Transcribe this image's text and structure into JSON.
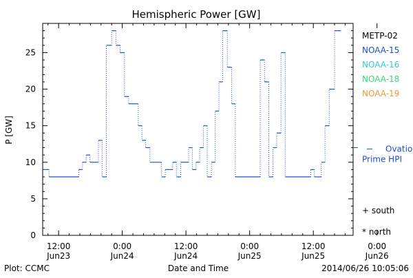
{
  "chart_data": {
    "type": "line",
    "title": "Hemispheric Power [GW]",
    "ylabel": "P [GW]",
    "xlabel": "Date and Time",
    "ylim": [
      0,
      29
    ],
    "yticks": [
      "0",
      "5",
      "10",
      "15",
      "20",
      "25"
    ],
    "x_tick_labels": [
      {
        "time": "12:00",
        "date": "Jun23"
      },
      {
        "time": "0:00",
        "date": "Jun24"
      },
      {
        "time": "12:00",
        "date": "Jun24"
      },
      {
        "time": "0:00",
        "date": "Jun25"
      },
      {
        "time": "12:00",
        "date": "Jun25"
      },
      {
        "time": "0:00",
        "date": "Jun26"
      }
    ],
    "xlim_hours": [
      -3.0,
      55.5
    ],
    "legend": [
      {
        "name": "METP-02",
        "color": "#000000"
      },
      {
        "name": "NOAA-15",
        "color": "#1f4fd0"
      },
      {
        "name": "NOAA-16",
        "color": "#33c8d8"
      },
      {
        "name": "NOAA-18",
        "color": "#33d880"
      },
      {
        "name": "NOAA-19",
        "color": "#f09a2a"
      }
    ],
    "reference": {
      "label_line1": "Ovation",
      "label_line2": "Prime HPI",
      "value": 12,
      "color": "#1f4fd0"
    },
    "markers_legend": [
      {
        "symbol": "+",
        "label": "south"
      },
      {
        "symbol": "*",
        "label": "north"
      }
    ],
    "series": [
      {
        "name": "NOAA-15",
        "color": "#1f4fd0",
        "steps": [
          [
            -3.0,
            9
          ],
          [
            -1.8,
            8
          ],
          [
            3.8,
            9
          ],
          [
            4.5,
            10
          ],
          [
            5.2,
            11
          ],
          [
            5.9,
            10
          ],
          [
            7.5,
            13
          ],
          [
            8.2,
            8
          ],
          [
            9.0,
            26
          ],
          [
            10.0,
            28
          ],
          [
            10.8,
            26
          ],
          [
            11.6,
            25
          ],
          [
            12.4,
            19
          ],
          [
            13.2,
            18
          ],
          [
            15.0,
            15
          ],
          [
            15.7,
            13
          ],
          [
            16.4,
            12
          ],
          [
            17.2,
            10
          ],
          [
            19.4,
            8
          ],
          [
            20.1,
            9
          ],
          [
            21.5,
            10
          ],
          [
            22.2,
            8
          ],
          [
            23.0,
            10
          ],
          [
            24.5,
            12
          ],
          [
            25.2,
            9
          ],
          [
            25.9,
            10
          ],
          [
            26.6,
            12
          ],
          [
            27.3,
            15
          ],
          [
            28.0,
            8
          ],
          [
            28.8,
            10
          ],
          [
            29.5,
            17
          ],
          [
            30.2,
            21
          ],
          [
            30.9,
            28
          ],
          [
            31.8,
            23
          ],
          [
            32.6,
            18
          ],
          [
            33.3,
            8
          ],
          [
            38.0,
            24
          ],
          [
            38.8,
            21
          ],
          [
            39.6,
            8
          ],
          [
            40.4,
            12
          ],
          [
            41.1,
            14
          ],
          [
            41.9,
            25
          ],
          [
            42.7,
            8
          ],
          [
            47.5,
            9
          ],
          [
            48.2,
            8
          ],
          [
            49.5,
            10
          ],
          [
            50.2,
            15
          ],
          [
            51.0,
            20
          ],
          [
            52.0,
            28
          ],
          [
            53.2,
            28
          ]
        ]
      }
    ]
  },
  "footer": {
    "plot_credit": "Plot: CCMC",
    "timestamp": "2014/06/26 10:05:06"
  }
}
